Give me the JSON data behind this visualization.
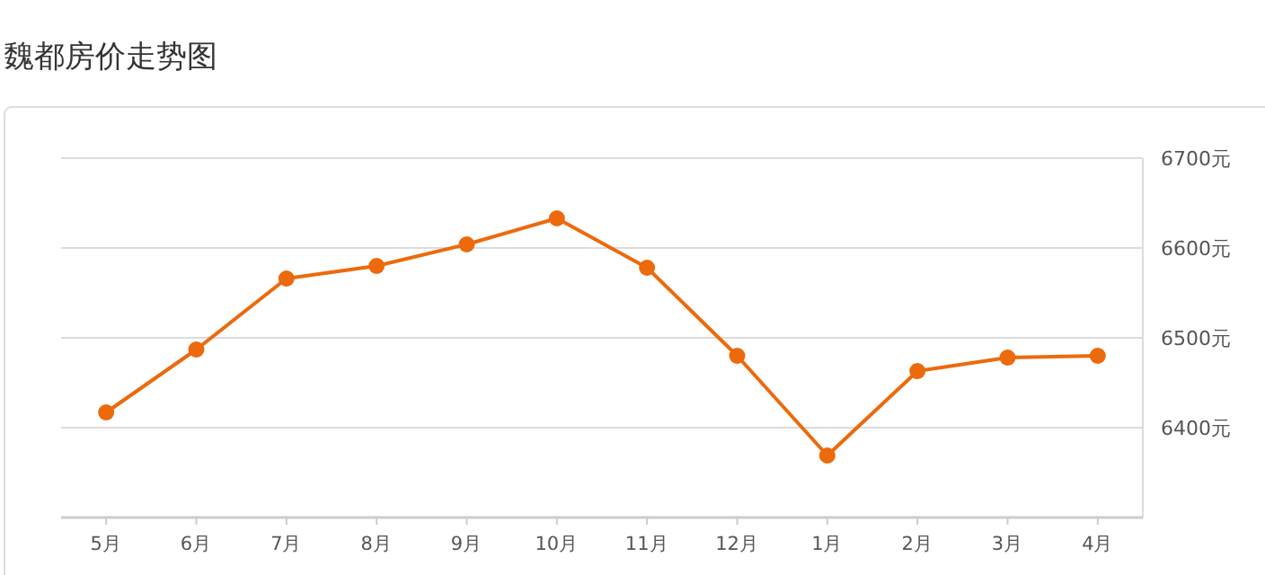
{
  "chart_data": {
    "type": "line",
    "title": "魏都房价走势图",
    "categories": [
      "5月",
      "6月",
      "7月",
      "8月",
      "9月",
      "10月",
      "11月",
      "12月",
      "1月",
      "2月",
      "3月",
      "4月"
    ],
    "series": [
      {
        "color": "#ec6a0c",
        "values": [
          6417,
          6487,
          6566,
          6580,
          6604,
          6633,
          6578,
          6480,
          6369,
          6463,
          6478,
          6480
        ]
      }
    ],
    "ylim": [
      6300,
      6700
    ],
    "yticks": [
      {
        "value": 6300,
        "label": null
      },
      {
        "value": 6400,
        "label": "6400元"
      },
      {
        "value": 6500,
        "label": "6500元"
      },
      {
        "value": 6600,
        "label": "6600元"
      },
      {
        "value": 6700,
        "label": "6700元"
      }
    ],
    "grid": "y",
    "marker": "circle",
    "line_style": "solid"
  }
}
